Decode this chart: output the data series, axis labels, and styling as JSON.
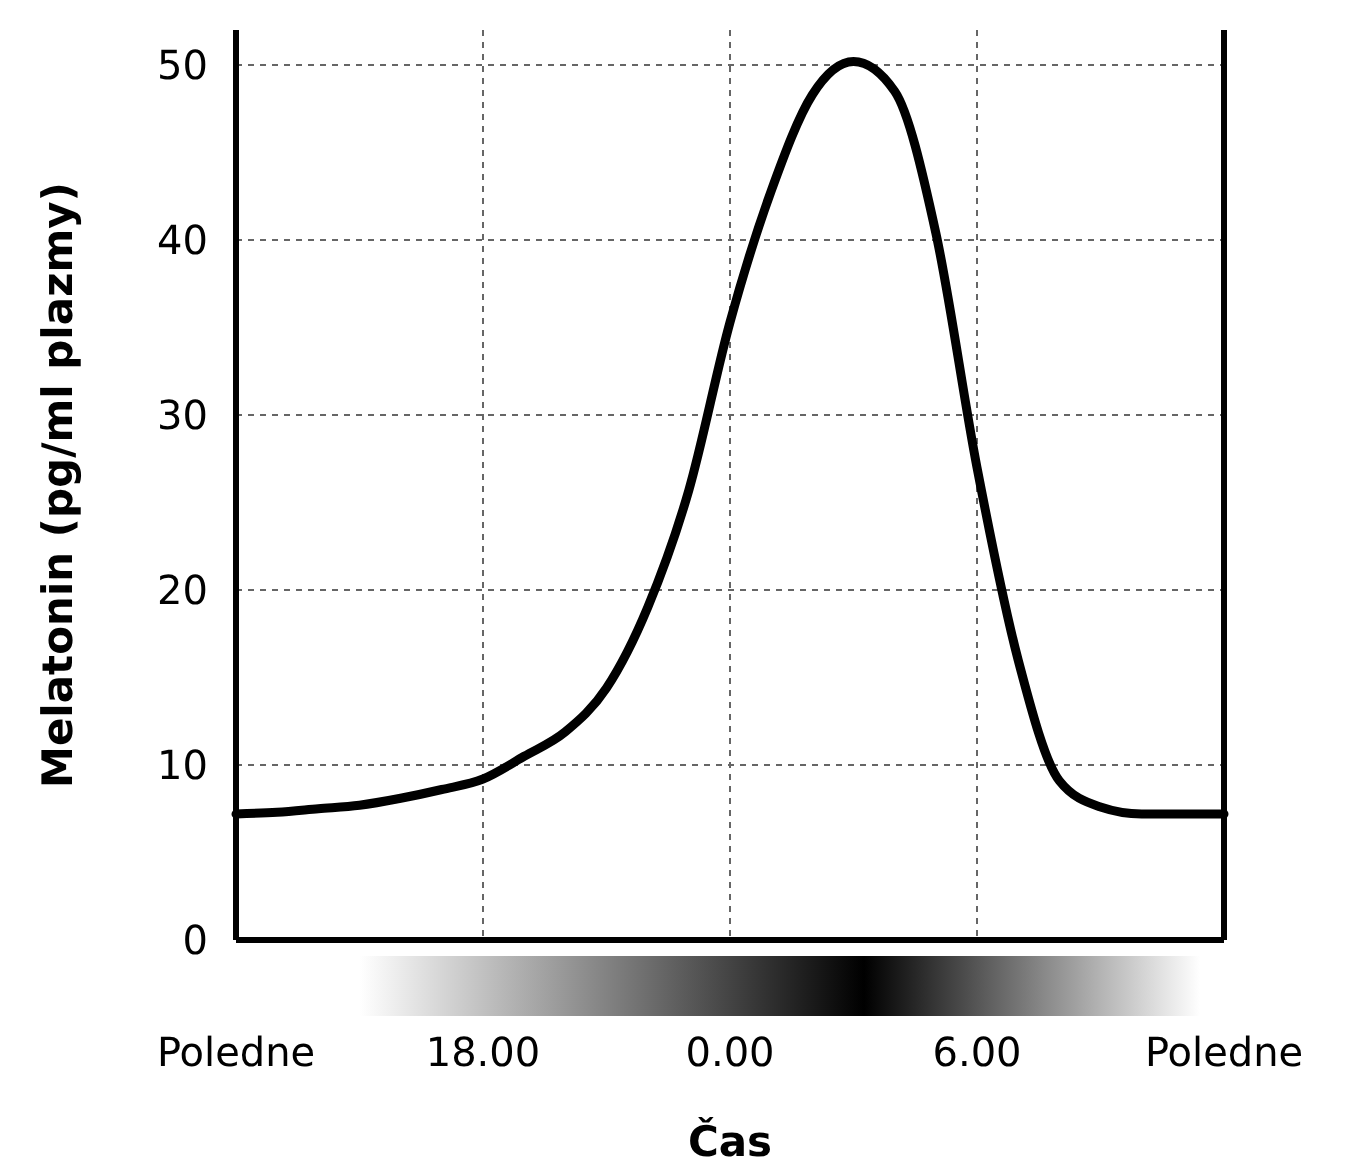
{
  "chart_data": {
    "type": "line",
    "xlabel": "Čas",
    "ylabel": "Melatonin (pg/ml plazmy)",
    "categories": [
      "Poledne",
      null,
      null,
      null,
      null,
      null,
      "18.00",
      null,
      null,
      null,
      null,
      null,
      "0.00",
      null,
      null,
      null,
      null,
      null,
      "6.00",
      null,
      null,
      null,
      null,
      null,
      "Poledne"
    ],
    "ylim": [
      0,
      52
    ],
    "yticks": [
      0,
      10,
      20,
      30,
      40,
      50
    ],
    "grid": true,
    "marker": "none",
    "line_style": "solid",
    "series": [
      {
        "color": "#000000",
        "values": [
          7.2,
          7.3,
          7.5,
          7.7,
          8.1,
          8.6,
          9.2,
          10.5,
          11.9,
          14.4,
          19,
          25.7,
          35.3,
          42.8,
          48.3,
          50.2,
          48.5,
          40.4,
          27,
          16,
          9.1,
          7.6,
          7.2,
          7.2,
          7.2
        ]
      }
    ]
  }
}
